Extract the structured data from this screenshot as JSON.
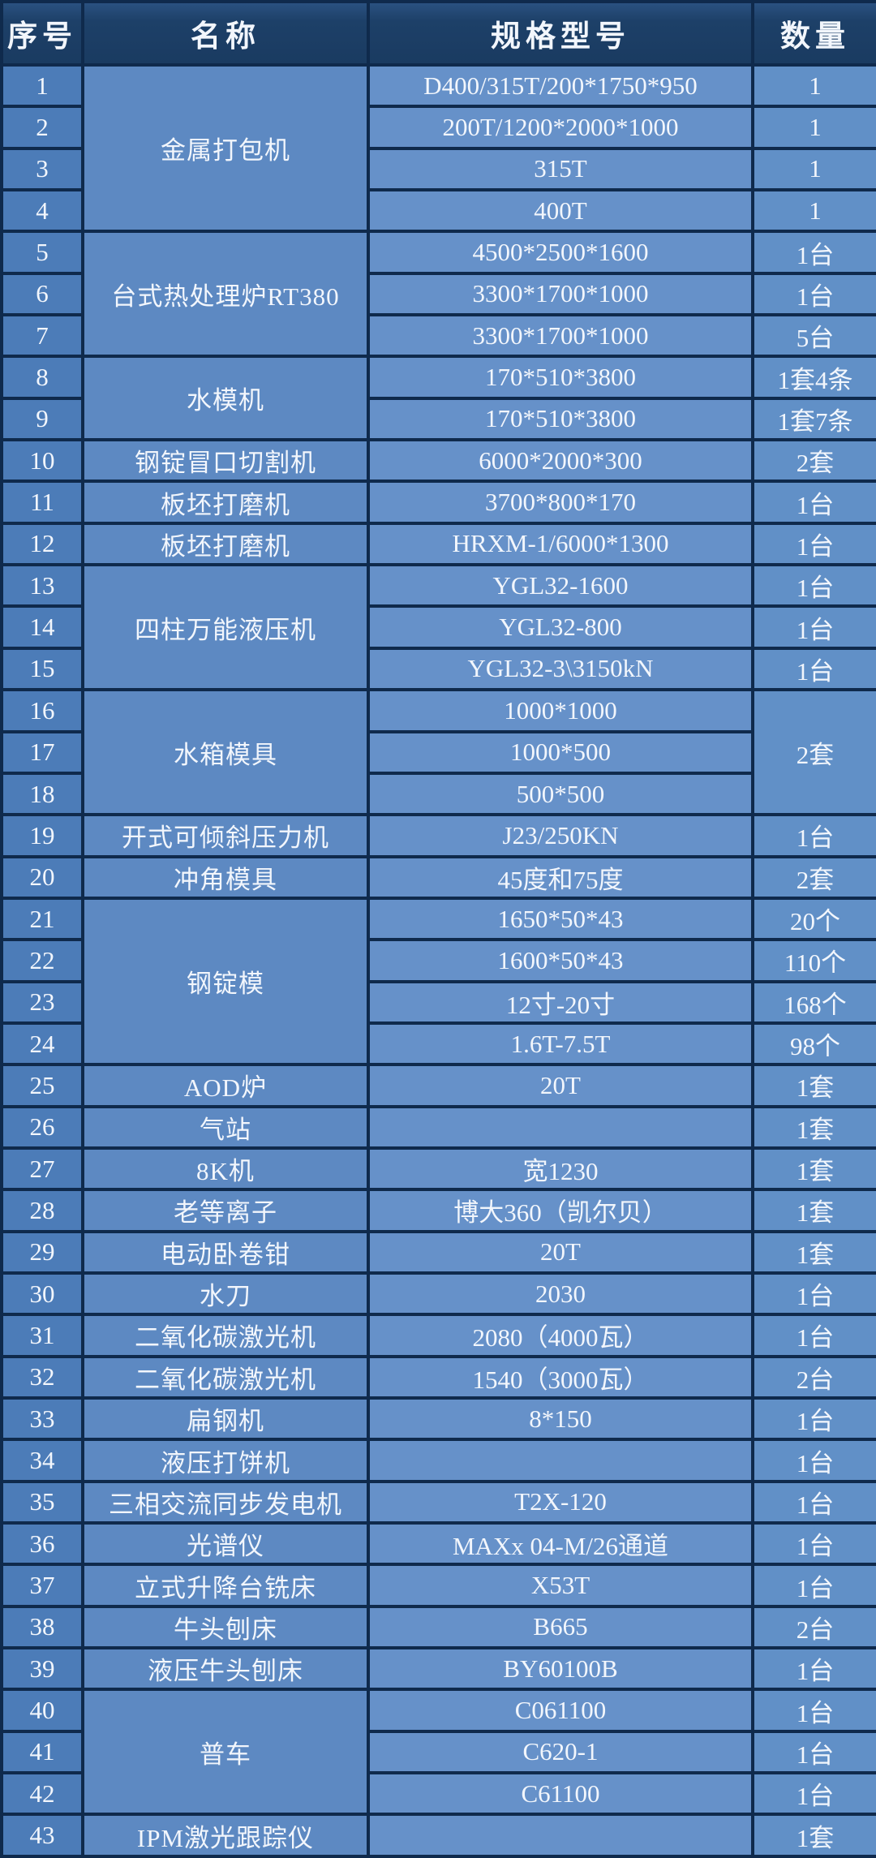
{
  "table": {
    "headers": [
      "序号",
      "名称",
      "规格型号",
      "数量"
    ],
    "rows": [
      {
        "no": "1",
        "name": "金属打包机",
        "name_rowspan": 4,
        "spec": "D400/315T/200*1750*950",
        "qty": "1"
      },
      {
        "no": "2",
        "spec": "200T/1200*2000*1000",
        "qty": "1"
      },
      {
        "no": "3",
        "spec": "315T",
        "qty": "1"
      },
      {
        "no": "4",
        "spec": "400T",
        "qty": "1"
      },
      {
        "no": "5",
        "name": "台式热处理炉RT380",
        "name_rowspan": 3,
        "spec": "4500*2500*1600",
        "qty": "1台"
      },
      {
        "no": "6",
        "spec": "3300*1700*1000",
        "qty": "1台"
      },
      {
        "no": "7",
        "spec": "3300*1700*1000",
        "qty": "5台"
      },
      {
        "no": "8",
        "name": "水模机",
        "name_rowspan": 2,
        "spec": "170*510*3800",
        "qty": "1套4条"
      },
      {
        "no": "9",
        "spec": "170*510*3800",
        "qty": "1套7条"
      },
      {
        "no": "10",
        "name": "钢锭冒口切割机",
        "spec": "6000*2000*300",
        "qty": "2套"
      },
      {
        "no": "11",
        "name": "板坯打磨机",
        "spec": "3700*800*170",
        "qty": "1台"
      },
      {
        "no": "12",
        "name": "板坯打磨机",
        "spec": "HRXM-1/6000*1300",
        "qty": "1台"
      },
      {
        "no": "13",
        "name": "四柱万能液压机",
        "name_rowspan": 3,
        "spec": "YGL32-1600",
        "qty": "1台"
      },
      {
        "no": "14",
        "spec": "YGL32-800",
        "qty": "1台"
      },
      {
        "no": "15",
        "spec": "YGL32-3\\3150kN",
        "qty": "1台"
      },
      {
        "no": "16",
        "name": "水箱模具",
        "name_rowspan": 3,
        "spec": "1000*1000",
        "qty": "2套",
        "qty_rowspan": 3
      },
      {
        "no": "17",
        "spec": "1000*500"
      },
      {
        "no": "18",
        "spec": "500*500"
      },
      {
        "no": "19",
        "name": "开式可倾斜压力机",
        "spec": "J23/250KN",
        "qty": "1台"
      },
      {
        "no": "20",
        "name": "冲角模具",
        "spec": "45度和75度",
        "qty": "2套"
      },
      {
        "no": "21",
        "name": "钢锭模",
        "name_rowspan": 4,
        "spec": "1650*50*43",
        "qty": "20个"
      },
      {
        "no": "22",
        "spec": "1600*50*43",
        "qty": "110个"
      },
      {
        "no": "23",
        "spec": "12寸-20寸",
        "qty": "168个"
      },
      {
        "no": "24",
        "spec": "1.6T-7.5T",
        "qty": "98个"
      },
      {
        "no": "25",
        "name": "AOD炉",
        "spec": "20T",
        "qty": "1套"
      },
      {
        "no": "26",
        "name": "气站",
        "spec": "",
        "qty": "1套"
      },
      {
        "no": "27",
        "name": "8K机",
        "spec": "宽1230",
        "qty": "1套"
      },
      {
        "no": "28",
        "name": "老等离子",
        "spec": "博大360（凯尔贝）",
        "qty": "1套"
      },
      {
        "no": "29",
        "name": "电动卧卷钳",
        "spec": "20T",
        "qty": "1套"
      },
      {
        "no": "30",
        "name": "水刀",
        "spec": "2030",
        "qty": "1台"
      },
      {
        "no": "31",
        "name": "二氧化碳激光机",
        "spec": "2080（4000瓦）",
        "qty": "1台"
      },
      {
        "no": "32",
        "name": "二氧化碳激光机",
        "spec": "1540（3000瓦）",
        "qty": "2台"
      },
      {
        "no": "33",
        "name": "扁钢机",
        "spec": "8*150",
        "qty": "1台"
      },
      {
        "no": "34",
        "name": "液压打饼机",
        "spec": "",
        "qty": "1台"
      },
      {
        "no": "35",
        "name": "三相交流同步发电机",
        "spec": "T2X-120",
        "qty": "1台"
      },
      {
        "no": "36",
        "name": "光谱仪",
        "spec": "MAXx 04-M/26通道",
        "qty": "1台"
      },
      {
        "no": "37",
        "name": "立式升降台铣床",
        "spec": "X53T",
        "qty": "1台"
      },
      {
        "no": "38",
        "name": "牛头刨床",
        "spec": "B665",
        "qty": "2台"
      },
      {
        "no": "39",
        "name": "液压牛头刨床",
        "spec": "BY60100B",
        "qty": "1台"
      },
      {
        "no": "40",
        "name": "普车",
        "name_rowspan": 3,
        "spec": "C061100",
        "qty": "1台"
      },
      {
        "no": "41",
        "spec": "C620-1",
        "qty": "1台"
      },
      {
        "no": "42",
        "spec": "C61100",
        "qty": "1台"
      },
      {
        "no": "43",
        "name": "IPM激光跟踪仪",
        "spec": "",
        "qty": "1套"
      }
    ],
    "colors": {
      "header_bg": "#1d4068",
      "border": "#0f2a4c",
      "no_cell_bg": "#4c7cb8",
      "name_cell_bg": "#5d89c2",
      "spec_cell_bg": "#6691c9",
      "qty_cell_bg": "#6190c7",
      "text": "#f2f6fc"
    }
  }
}
